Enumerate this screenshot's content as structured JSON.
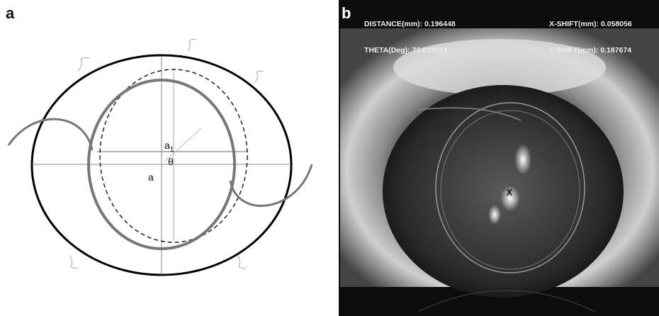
{
  "panels": {
    "a": {
      "label": "a",
      "labels": {
        "a1": {
          "base": "a",
          "sub": "1"
        },
        "theta": "θ",
        "a": "a"
      }
    },
    "b": {
      "label": "b",
      "overlay": {
        "distance": "DISTANCE(mm): 0.196448",
        "x_shift": "X-SHIFT(mm): 0.058056",
        "theta": "THETA(Deg): 72.810743",
        "y_shift": "Y-SHIFT(mm): 0.187674",
        "center_mark": "X"
      }
    }
  }
}
